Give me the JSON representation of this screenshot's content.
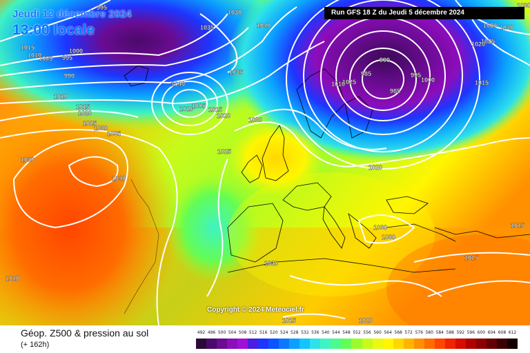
{
  "header": {
    "date": "Jeudi 12 décembre 2024",
    "local_time": "13:00 locale",
    "run_info": "Run GFS 18 Z du Jeudi 5 décembre 2024"
  },
  "map": {
    "copyright": "Copyright © 2024 Meteociel.fr",
    "isobar_labels": [
      "1030",
      "995",
      "1035",
      "1040",
      "1015",
      "1010",
      "1005",
      "995",
      "1000",
      "990",
      "1040",
      "1035",
      "1010",
      "1015",
      "1020",
      "1025",
      "1030",
      "1035",
      "1040",
      "1030",
      "1010",
      "1005",
      "1015",
      "1020",
      "1030",
      "1025",
      "1030",
      "1020",
      "990",
      "985",
      "985",
      "995",
      "1000",
      "1010",
      "1015",
      "1020",
      "1030",
      "1030",
      "1030",
      "1015",
      "1015",
      "1020",
      "1010",
      "1015",
      "1020",
      "1030",
      "1025",
      "1025"
    ]
  },
  "footer": {
    "title": "Géop. Z500 & pression au sol",
    "lead_time": "(+ 162h)",
    "scale_values": [
      "492",
      "496",
      "500",
      "504",
      "508",
      "512",
      "516",
      "520",
      "524",
      "528",
      "532",
      "536",
      "540",
      "544",
      "548",
      "552",
      "556",
      "560",
      "564",
      "568",
      "572",
      "576",
      "580",
      "584",
      "588",
      "592",
      "596",
      "600",
      "604",
      "608",
      "612"
    ],
    "scale_colors": [
      "#2b0a3a",
      "#4a0a6a",
      "#6a0b92",
      "#8c0dbb",
      "#a011d8",
      "#4b1ee0",
      "#1e34ff",
      "#0a55ff",
      "#0b78ff",
      "#0aa0ff",
      "#13c4ff",
      "#2ee2e9",
      "#3ff3c2",
      "#4bfb8c",
      "#63fd55",
      "#9afc2c",
      "#c7fb1a",
      "#ebf90f",
      "#fff600",
      "#ffd700",
      "#ffb400",
      "#ff9100",
      "#ff6c00",
      "#ff4500",
      "#f02400",
      "#d60d00",
      "#b00000",
      "#8c0000",
      "#640000",
      "#3c0000",
      "#140000"
    ]
  },
  "colors": {
    "low_center": "#5b0d8f",
    "high_center": "#ff4b1a",
    "isobar": "#ffffff",
    "coast": "#000000"
  },
  "icons": {
    "run-info": "text-box"
  }
}
